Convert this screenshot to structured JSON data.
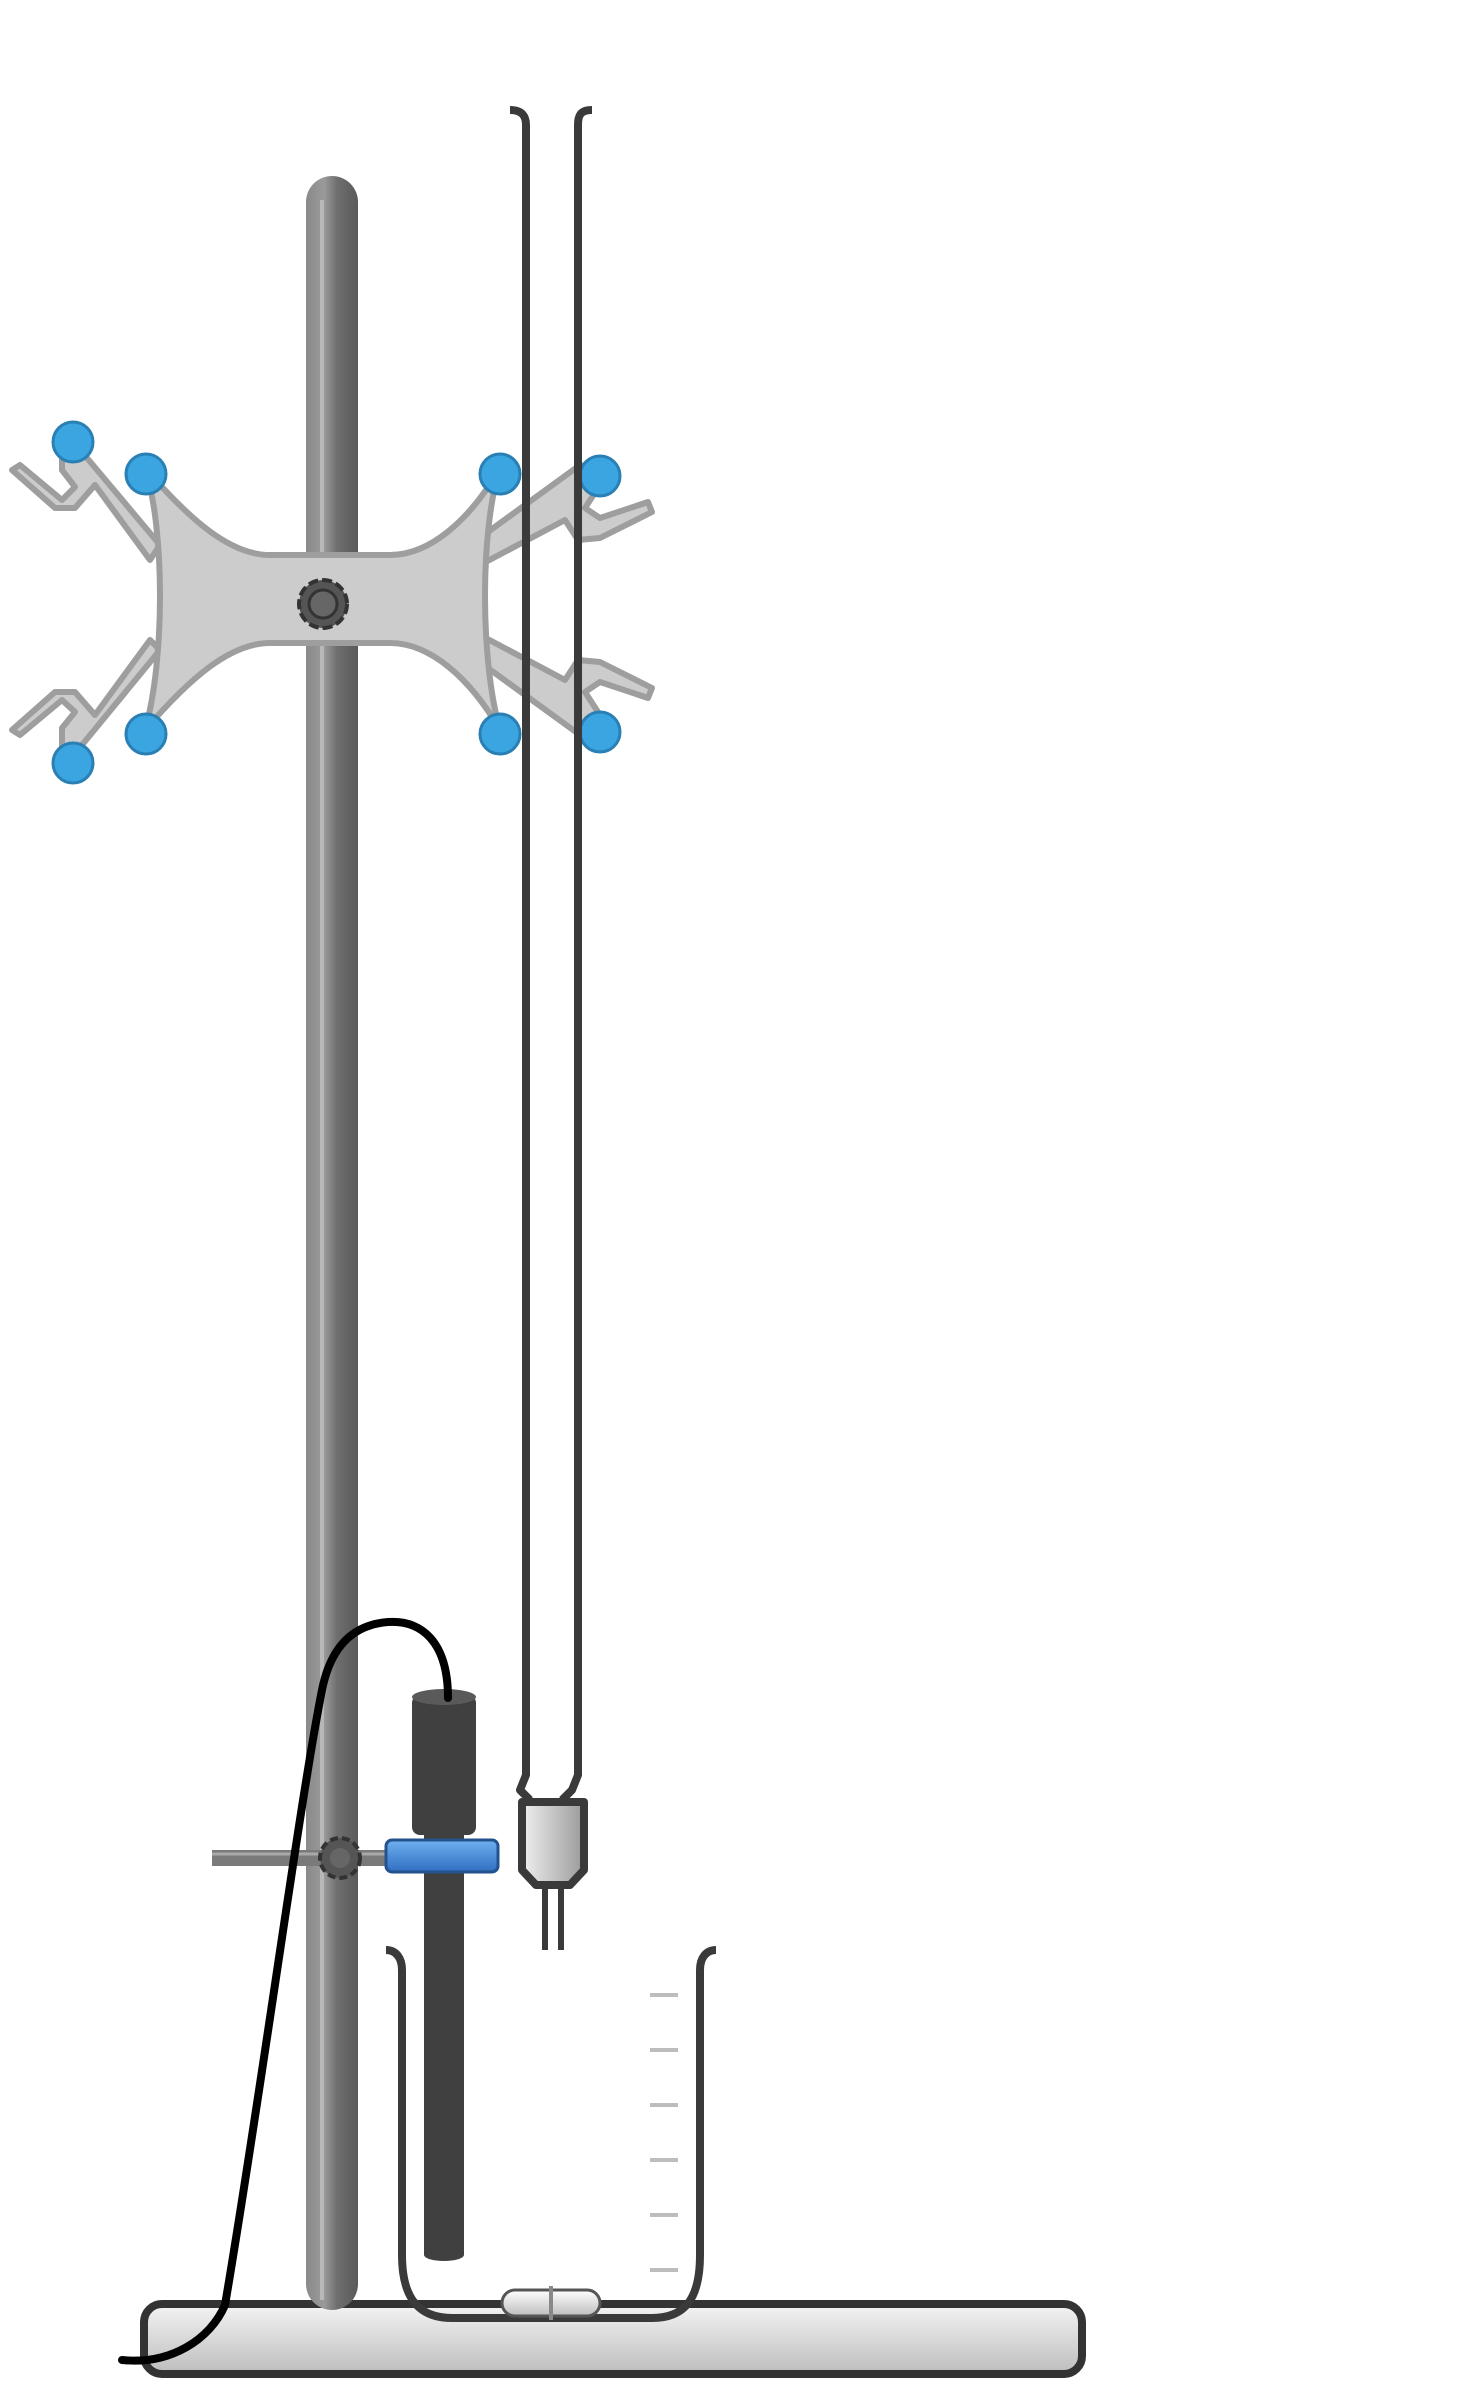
{
  "scene": {
    "description_visible_text": "",
    "colors": {
      "background": "#ffffff",
      "rod": "#7a7a7a",
      "rod_dark": "#5a5a5a",
      "clamp_body": "#cccccc",
      "clamp_outline": "#9e9e9e",
      "clamp_pads": "#3aa5e0",
      "glass_outline": "#3a3a3a",
      "electrode": "#404040",
      "holder_blue": "#3f86d8",
      "base_fill": "#d9d9d9",
      "base_outline": "#333333",
      "cable": "#000000",
      "graduation": "#bdbdbd"
    },
    "components": {
      "retort_stand": "retort-stand",
      "burette_clamp": "double-burette-clamp",
      "burette": "burette",
      "electrode_holder": "electrode-holder",
      "electrode": "ph-electrode",
      "beaker": "beaker",
      "stir_bar": "magnetic-stir-bar",
      "cable": "electrode-cable"
    },
    "beaker_graduation_marks": 6
  }
}
